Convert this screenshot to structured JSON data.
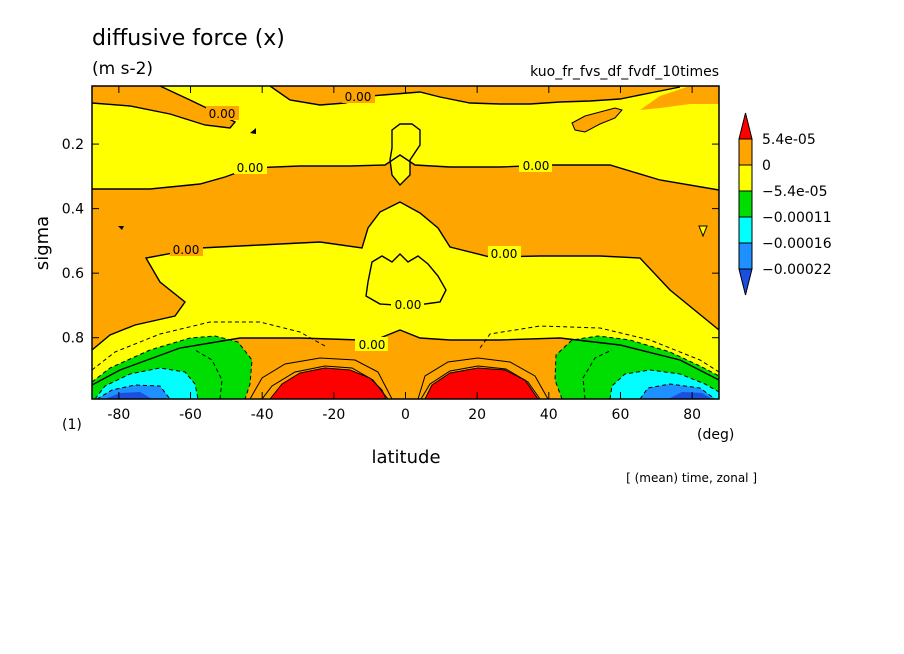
{
  "chart_data": {
    "type": "heatmap",
    "title": "diffusive force (x)",
    "units": "(m s-2)",
    "experiment": "kuo_fr_fvs_df_fvdf_10times",
    "panel_label": "(1)",
    "xlabel": "latitude",
    "x_units": "(deg)",
    "ylabel": "sigma",
    "footer_note": "[ (mean) time, zonal ]",
    "xlim": [
      -87.5,
      87.5
    ],
    "ylim": [
      0.02,
      0.99
    ],
    "y_inverted": true,
    "x_ticks": [
      {
        "value": -80,
        "label": "-80"
      },
      {
        "value": -60,
        "label": "-60"
      },
      {
        "value": -40,
        "label": "-40"
      },
      {
        "value": -20,
        "label": "-20"
      },
      {
        "value": 0,
        "label": "0"
      },
      {
        "value": 20,
        "label": "20"
      },
      {
        "value": 40,
        "label": "40"
      },
      {
        "value": 60,
        "label": "60"
      },
      {
        "value": 80,
        "label": "80"
      }
    ],
    "y_ticks": [
      {
        "value": 0.2,
        "label": "0.2"
      },
      {
        "value": 0.4,
        "label": "0.4"
      },
      {
        "value": 0.6,
        "label": "0.6"
      },
      {
        "value": 0.8,
        "label": "0.8"
      }
    ],
    "colorbar": {
      "levels": [
        {
          "value": 5.4e-05,
          "label": "5.4e-05"
        },
        {
          "value": 0,
          "label": "0"
        },
        {
          "value": -5.4e-05,
          "label": "−5.4e-05"
        },
        {
          "value": -0.00011,
          "label": "−0.00011"
        },
        {
          "value": -0.00016,
          "label": "−0.00016"
        },
        {
          "value": -0.00022,
          "label": "−0.00022"
        }
      ],
      "colors": [
        "#ff0000",
        "#ffa500",
        "#ffff00",
        "#00dd00",
        "#00ffff",
        "#1e90ff",
        "#1a4fe0"
      ]
    },
    "contour_labels": [
      "0.00",
      "0.00",
      "0.00",
      "0.00",
      "0.00",
      "0.00",
      "0.00",
      "0.00"
    ]
  }
}
